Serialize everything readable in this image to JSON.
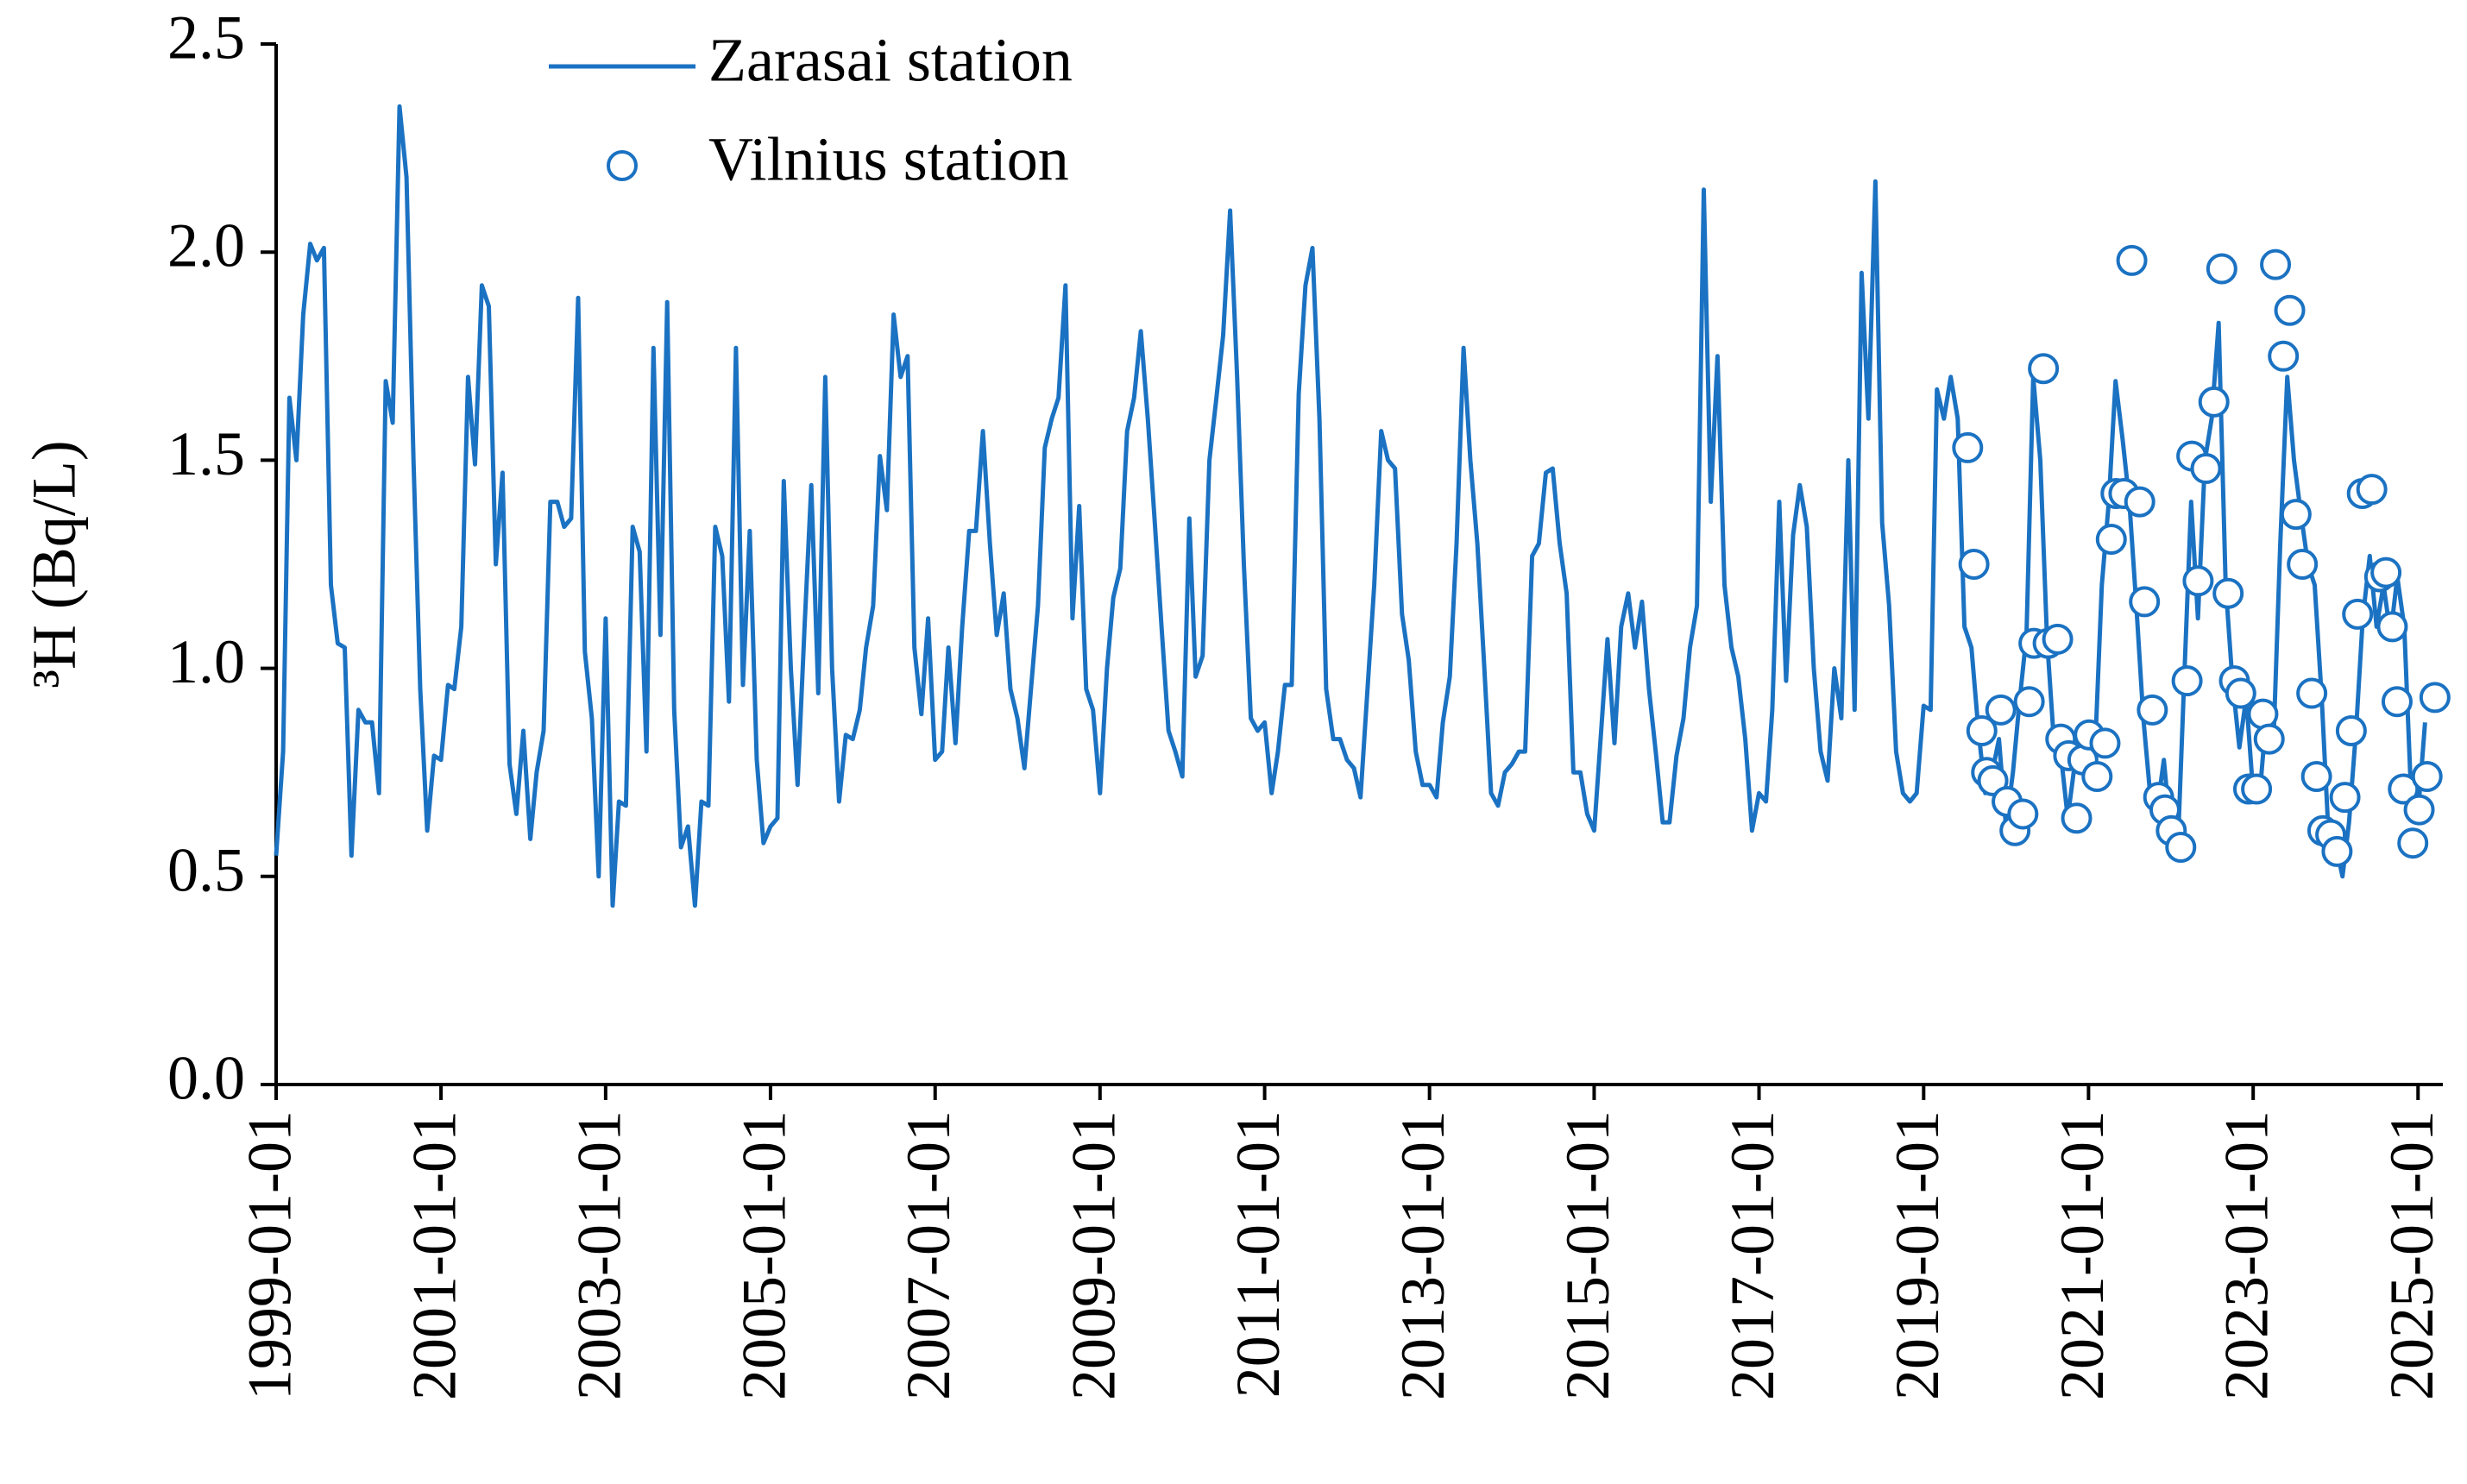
{
  "chart_data": {
    "type": "line",
    "ylabel": "³H (Bq/L)",
    "ylim": [
      0,
      2.5
    ],
    "yticks": [
      {
        "value": 0,
        "label": "0.0"
      },
      0.5,
      {
        "value": 1,
        "label": "1.0"
      },
      1.5,
      {
        "value": 2,
        "label": "2.0"
      },
      2.5
    ],
    "xlim": [
      "1999-01-01",
      "2025-04-21"
    ],
    "xticks": [
      "1999-01-01",
      "2001-01-01",
      "2003-01-01",
      "2005-01-01",
      "2007-01-01",
      "2009-01-01",
      "2011-01-01",
      "2013-01-01",
      "2015-01-01",
      "2017-01-01",
      "2019-01-01",
      "2021-01-01",
      "2023-01-01",
      "2025-01-01"
    ],
    "grid": false,
    "legend": "upper left",
    "series": [
      {
        "name": "Zarasai station",
        "type": "line",
        "color": "#1b72c2",
        "x": [
          "1999-01-01",
          "1999-02-01",
          "1999-03-01",
          "1999-04-01",
          "1999-05-01",
          "1999-06-01",
          "1999-07-01",
          "1999-08-01",
          "1999-09-01",
          "1999-10-01",
          "1999-11-01",
          "1999-12-01",
          "2000-01-01",
          "2000-02-01",
          "2000-03-01",
          "2000-04-01",
          "2000-05-01",
          "2000-06-01",
          "2000-07-01",
          "2000-08-01",
          "2000-09-01",
          "2000-10-01",
          "2000-11-01",
          "2000-12-01",
          "2001-01-01",
          "2001-02-01",
          "2001-03-01",
          "2001-04-01",
          "2001-05-01",
          "2001-06-01",
          "2001-07-01",
          "2001-08-01",
          "2001-09-01",
          "2001-10-01",
          "2001-11-01",
          "2001-12-01",
          "2002-01-01",
          "2002-02-01",
          "2002-03-01",
          "2002-04-01",
          "2002-05-01",
          "2002-06-01",
          "2002-07-01",
          "2002-08-01",
          "2002-09-01",
          "2002-10-01",
          "2002-11-01",
          "2002-12-01",
          "2003-01-01",
          "2003-02-01",
          "2003-03-01",
          "2003-04-01",
          "2003-05-01",
          "2003-06-01",
          "2003-07-01",
          "2003-08-01",
          "2003-09-01",
          "2003-10-01",
          "2003-11-01",
          "2003-12-01",
          "2004-01-01",
          "2004-02-01",
          "2004-03-01",
          "2004-04-01",
          "2004-05-01",
          "2004-06-01",
          "2004-07-01",
          "2004-08-01",
          "2004-09-01",
          "2004-10-01",
          "2004-11-01",
          "2004-12-01",
          "2005-01-01",
          "2005-02-01",
          "2005-03-01",
          "2005-04-01",
          "2005-05-01",
          "2005-06-01",
          "2005-07-01",
          "2005-08-01",
          "2005-09-01",
          "2005-10-01",
          "2005-11-01",
          "2005-12-01",
          "2006-01-01",
          "2006-02-01",
          "2006-03-01",
          "2006-04-01",
          "2006-05-01",
          "2006-06-01",
          "2006-07-01",
          "2006-08-01",
          "2006-09-01",
          "2006-10-01",
          "2006-11-01",
          "2006-12-01",
          "2007-01-01",
          "2007-02-01",
          "2007-03-01",
          "2007-04-01",
          "2007-05-01",
          "2007-06-01",
          "2007-07-01",
          "2007-08-01",
          "2007-09-01",
          "2007-10-01",
          "2007-11-01",
          "2007-12-01",
          "2008-01-01",
          "2008-02-01",
          "2008-03-01",
          "2008-04-01",
          "2008-05-01",
          "2008-06-01",
          "2008-07-01",
          "2008-08-01",
          "2008-09-01",
          "2008-10-01",
          "2008-11-01",
          "2008-12-01",
          "2009-01-01",
          "2009-02-01",
          "2009-03-01",
          "2009-04-01",
          "2009-05-01",
          "2009-06-01",
          "2009-07-01",
          "2009-08-01",
          "2009-09-01",
          "2009-10-01",
          "2009-11-01",
          "2009-12-01",
          "2010-01-01",
          "2010-02-01",
          "2010-03-01",
          "2010-04-01",
          "2010-05-01",
          "2010-06-01",
          "2010-07-01",
          "2010-08-01",
          "2010-09-01",
          "2010-10-01",
          "2010-11-01",
          "2010-12-01",
          "2011-01-01",
          "2011-02-01",
          "2011-03-01",
          "2011-04-01",
          "2011-05-01",
          "2011-06-01",
          "2011-07-01",
          "2011-08-01",
          "2011-09-01",
          "2011-10-01",
          "2011-11-01",
          "2011-12-01",
          "2012-01-01",
          "2012-02-01",
          "2012-03-01",
          "2012-04-01",
          "2012-05-01",
          "2012-06-01",
          "2012-07-01",
          "2012-08-01",
          "2012-09-01",
          "2012-10-01",
          "2012-11-01",
          "2012-12-01",
          "2013-01-01",
          "2013-02-01",
          "2013-03-01",
          "2013-04-01",
          "2013-05-01",
          "2013-06-01",
          "2013-07-01",
          "2013-08-01",
          "2013-09-01",
          "2013-10-01",
          "2013-11-01",
          "2013-12-01",
          "2014-01-01",
          "2014-02-01",
          "2014-03-01",
          "2014-04-01",
          "2014-05-01",
          "2014-06-01",
          "2014-07-01",
          "2014-08-01",
          "2014-09-01",
          "2014-10-01",
          "2014-11-01",
          "2014-12-01",
          "2015-01-01",
          "2015-02-01",
          "2015-03-01",
          "2015-04-01",
          "2015-05-01",
          "2015-06-01",
          "2015-07-01",
          "2015-08-01",
          "2015-09-01",
          "2015-10-01",
          "2015-11-01",
          "2015-12-01",
          "2016-01-01",
          "2016-02-01",
          "2016-03-01",
          "2016-04-01",
          "2016-05-01",
          "2016-06-01",
          "2016-07-01",
          "2016-08-01",
          "2016-09-01",
          "2016-10-01",
          "2016-11-01",
          "2016-12-01",
          "2017-01-01",
          "2017-02-01",
          "2017-03-01",
          "2017-04-01",
          "2017-05-01",
          "2017-06-01",
          "2017-07-01",
          "2017-08-01",
          "2017-09-01",
          "2017-10-01",
          "2017-11-01",
          "2017-12-01",
          "2018-01-01",
          "2018-02-01",
          "2018-03-01",
          "2018-04-01",
          "2018-05-01",
          "2018-06-01",
          "2018-07-01",
          "2018-08-01",
          "2018-09-01",
          "2018-10-01",
          "2018-11-01",
          "2018-12-01",
          "2019-01-01",
          "2019-02-01",
          "2019-03-01",
          "2019-04-01",
          "2019-05-01",
          "2019-06-01",
          "2019-07-01",
          "2019-08-01",
          "2019-09-01",
          "2019-10-01",
          "2019-11-01",
          "2019-12-01",
          "2020-01-01",
          "2020-02-01",
          "2020-03-01",
          "2020-04-01",
          "2020-05-01",
          "2020-06-01",
          "2020-07-01",
          "2020-08-01",
          "2020-09-01",
          "2020-10-01",
          "2020-11-01",
          "2020-12-01",
          "2021-01-01",
          "2021-02-01",
          "2021-03-01",
          "2021-04-01",
          "2021-05-01",
          "2021-06-01",
          "2021-07-01",
          "2021-08-01",
          "2021-09-01",
          "2021-10-01",
          "2021-11-01",
          "2021-12-01",
          "2022-01-01",
          "2022-02-01",
          "2022-03-01",
          "2022-04-01",
          "2022-05-01",
          "2022-06-01",
          "2022-07-01",
          "2022-08-01",
          "2022-09-01",
          "2022-10-01",
          "2022-11-01",
          "2022-12-01",
          "2023-01-01",
          "2023-02-01",
          "2023-03-01",
          "2023-04-01",
          "2023-05-01",
          "2023-06-01",
          "2023-07-01",
          "2023-08-01",
          "2023-09-01",
          "2023-10-01",
          "2023-11-01",
          "2023-12-01",
          "2024-01-01",
          "2024-02-01",
          "2024-03-01",
          "2024-04-01",
          "2024-05-01",
          "2024-06-01",
          "2024-07-01",
          "2024-08-01",
          "2024-09-01",
          "2024-10-01",
          "2024-11-01",
          "2024-12-01",
          "2025-01-01",
          "2025-02-01"
        ],
        "values": [
          0.55,
          0.8,
          1.65,
          1.5,
          1.85,
          2.02,
          1.98,
          2.01,
          1.2,
          1.06,
          1.05,
          0.55,
          0.9,
          0.87,
          0.87,
          0.7,
          1.69,
          1.59,
          2.35,
          2.18,
          1.5,
          0.95,
          0.61,
          0.79,
          0.78,
          0.96,
          0.95,
          1.1,
          1.7,
          1.49,
          1.92,
          1.87,
          1.25,
          1.47,
          0.77,
          0.65,
          0.85,
          0.59,
          0.75,
          0.85,
          1.4,
          1.4,
          1.34,
          1.36,
          1.89,
          1.04,
          0.88,
          0.5,
          1.12,
          0.43,
          0.68,
          0.67,
          1.34,
          1.28,
          0.8,
          1.77,
          1.08,
          1.88,
          0.9,
          0.57,
          0.62,
          0.43,
          0.68,
          0.67,
          1.34,
          1.27,
          0.92,
          1.77,
          0.96,
          1.33,
          0.78,
          0.58,
          0.62,
          0.64,
          1.45,
          1.0,
          0.72,
          1.1,
          1.44,
          0.94,
          1.7,
          1.0,
          0.68,
          0.84,
          0.83,
          0.9,
          1.05,
          1.15,
          1.51,
          1.38,
          1.85,
          1.7,
          1.75,
          1.05,
          0.89,
          1.12,
          0.78,
          0.8,
          1.05,
          0.82,
          1.1,
          1.33,
          1.33,
          1.57,
          1.3,
          1.08,
          1.18,
          0.95,
          0.88,
          0.76,
          0.95,
          1.15,
          1.53,
          1.6,
          1.65,
          1.92,
          1.12,
          1.39,
          0.95,
          0.9,
          0.7,
          1.0,
          1.17,
          1.24,
          1.57,
          1.65,
          1.81,
          1.6,
          1.35,
          1.1,
          0.85,
          0.8,
          0.74,
          1.36,
          0.98,
          1.03,
          1.5,
          1.65,
          1.8,
          2.1,
          1.7,
          1.25,
          0.88,
          0.85,
          0.87,
          0.7,
          0.8,
          0.96,
          0.96,
          1.66,
          1.92,
          2.01,
          1.6,
          0.95,
          0.83,
          0.83,
          0.78,
          0.76,
          0.69,
          0.95,
          1.2,
          1.57,
          1.5,
          1.48,
          1.13,
          1.02,
          0.8,
          0.72,
          0.72,
          0.69,
          0.87,
          0.98,
          1.3,
          1.77,
          1.5,
          1.3,
          1.0,
          0.7,
          0.67,
          0.75,
          0.77,
          0.8,
          0.8,
          1.27,
          1.3,
          1.47,
          1.48,
          1.3,
          1.18,
          0.75,
          0.75,
          0.65,
          0.61,
          0.85,
          1.07,
          0.82,
          1.1,
          1.18,
          1.05,
          1.16,
          0.95,
          0.8,
          0.63,
          0.63,
          0.79,
          0.88,
          1.05,
          1.15,
          2.15,
          1.4,
          1.75,
          1.2,
          1.05,
          0.98,
          0.83,
          0.61,
          0.7,
          0.68,
          0.9,
          1.4,
          0.97,
          1.32,
          1.44,
          1.34,
          1.0,
          0.8,
          0.73,
          1.0,
          0.88,
          1.5,
          0.9,
          1.95,
          1.6,
          2.17,
          1.35,
          1.15,
          0.8,
          0.7,
          0.68,
          0.7,
          0.91,
          0.9,
          1.67,
          1.6,
          1.7,
          1.6,
          1.1,
          1.05,
          0.85,
          0.7,
          0.75,
          0.83,
          0.62,
          0.75,
          0.92,
          1.08,
          1.7,
          1.5,
          1.07,
          0.82,
          0.79,
          0.64,
          0.77,
          0.85,
          0.73,
          0.83,
          1.2,
          1.4,
          1.69,
          1.55,
          1.4,
          1.15,
          0.88,
          0.7,
          0.66,
          0.78,
          0.6,
          0.57,
          0.97,
          1.4,
          1.12,
          1.5,
          1.6,
          1.83,
          1.2,
          0.97,
          0.81,
          0.93,
          0.7,
          0.71,
          0.89,
          0.82,
          1.3,
          1.7,
          1.5,
          1.37,
          1.25,
          1.2,
          0.93,
          0.6,
          0.58,
          0.5,
          0.63,
          0.85,
          1.12,
          1.27,
          1.1,
          1.2,
          1.08,
          1.22,
          1.1,
          0.7,
          0.65,
          0.87
        ]
      },
      {
        "name": "Vilnius station",
        "type": "scatter",
        "color": "#1b72c2",
        "x": [
          "2019-07-15",
          "2019-08-12",
          "2019-09-16",
          "2019-10-07",
          "2019-11-04",
          "2019-12-09",
          "2020-01-06",
          "2020-02-10",
          "2020-03-16",
          "2020-04-13",
          "2020-05-04",
          "2020-06-15",
          "2020-07-06",
          "2020-08-17",
          "2020-08-31",
          "2020-10-05",
          "2020-11-09",
          "2020-12-07",
          "2021-01-04",
          "2021-02-08",
          "2021-03-15",
          "2021-04-12",
          "2021-05-03",
          "2021-06-07",
          "2021-07-12",
          "2021-08-16",
          "2021-09-06",
          "2021-10-11",
          "2021-11-08",
          "2021-12-06",
          "2022-01-03",
          "2022-02-14",
          "2022-03-14",
          "2022-04-04",
          "2022-05-02",
          "2022-06-06",
          "2022-07-11",
          "2022-08-15",
          "2022-09-12",
          "2022-10-10",
          "2022-11-07",
          "2022-12-12",
          "2023-01-16",
          "2023-02-13",
          "2023-03-13",
          "2023-04-10",
          "2023-05-15",
          "2023-06-12",
          "2023-07-10",
          "2023-08-07",
          "2023-09-18",
          "2023-10-09",
          "2023-11-06",
          "2023-12-11",
          "2024-01-08",
          "2024-02-12",
          "2024-03-11",
          "2024-04-08",
          "2024-04-29",
          "2024-06-10",
          "2024-07-15",
          "2024-08-12",
          "2024-09-09",
          "2024-09-30",
          "2024-10-28",
          "2024-12-09",
          "2025-01-06",
          "2025-02-10",
          "2025-03-17"
        ],
        "values": [
          1.53,
          1.25,
          0.85,
          0.75,
          0.73,
          0.9,
          0.68,
          0.61,
          0.65,
          0.92,
          1.06,
          1.72,
          1.06,
          1.07,
          0.83,
          0.79,
          0.64,
          0.78,
          0.84,
          0.74,
          0.82,
          1.31,
          1.42,
          1.42,
          1.98,
          1.4,
          1.16,
          0.9,
          0.69,
          0.66,
          0.61,
          0.57,
          0.97,
          1.51,
          1.21,
          1.48,
          1.64,
          1.96,
          1.18,
          0.97,
          0.94,
          0.71,
          0.71,
          0.89,
          0.83,
          1.97,
          1.75,
          1.86,
          1.37,
          1.25,
          0.94,
          0.74,
          0.61,
          0.6,
          0.56,
          0.69,
          0.85,
          1.13,
          1.42,
          1.43,
          1.22,
          1.23,
          1.1,
          0.92,
          0.71,
          0.58,
          0.66,
          0.74,
          0.93
        ]
      }
    ]
  }
}
